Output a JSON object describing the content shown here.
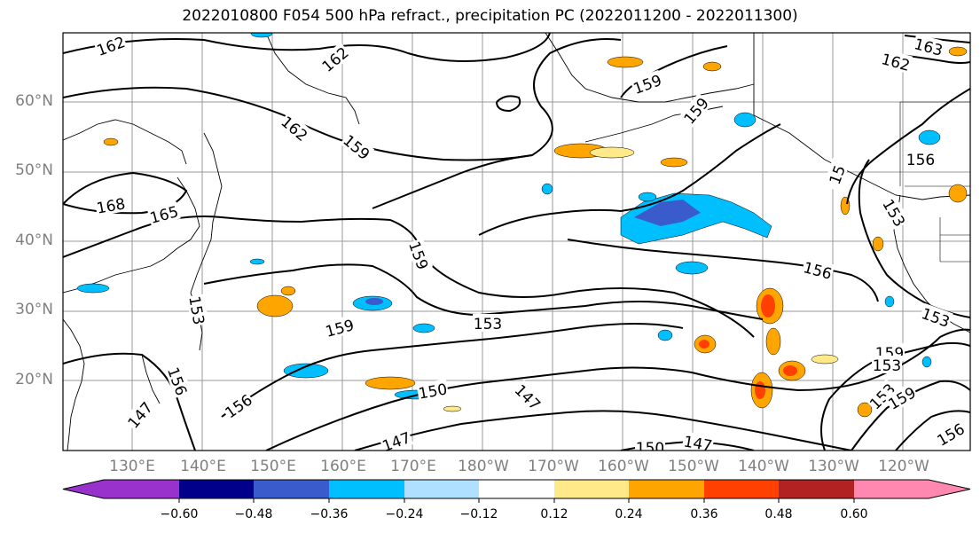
{
  "title": "2022010800 F054 500 hPa refract., precipitation PC (2022011200 - 2022011300)",
  "lat_labels": [
    "60°N",
    "50°N",
    "40°N",
    "30°N",
    "20°N"
  ],
  "lon_labels": [
    "130°E",
    "140°E",
    "150°E",
    "160°E",
    "170°E",
    "180°W",
    "170°W",
    "160°W",
    "150°W",
    "140°W",
    "130°W",
    "120°W"
  ],
  "colorbar": {
    "ticks": [
      "−0.60",
      "−0.48",
      "−0.36",
      "−0.24",
      "−0.12",
      "0.12",
      "0.24",
      "0.36",
      "0.48",
      "0.60"
    ],
    "colors": [
      "#9932cc",
      "#00008b",
      "#3a5bcc",
      "#00bfff",
      "#b0e0ff",
      "#ffffff",
      "#ffe989",
      "#ffa500",
      "#ff4000",
      "#b22222",
      "#ff88b0"
    ]
  },
  "contour_labels": [
    {
      "text": "162"
    },
    {
      "text": "162"
    },
    {
      "text": "162"
    },
    {
      "text": "162"
    },
    {
      "text": "163"
    },
    {
      "text": "159"
    },
    {
      "text": "159"
    },
    {
      "text": "159"
    },
    {
      "text": "159"
    },
    {
      "text": "159"
    },
    {
      "text": "159"
    },
    {
      "text": "168"
    },
    {
      "text": "165"
    },
    {
      "text": "156"
    },
    {
      "text": "156"
    },
    {
      "text": "156"
    },
    {
      "text": "156"
    },
    {
      "text": "156"
    },
    {
      "text": "153"
    },
    {
      "text": "153"
    },
    {
      "text": "153"
    },
    {
      "text": "153"
    },
    {
      "text": "153"
    },
    {
      "text": "153"
    },
    {
      "text": "150"
    },
    {
      "text": "150"
    },
    {
      "text": "147"
    },
    {
      "text": "147"
    },
    {
      "text": "147"
    },
    {
      "text": "147"
    },
    {
      "text": "15"
    },
    {
      "text": "159"
    }
  ]
}
